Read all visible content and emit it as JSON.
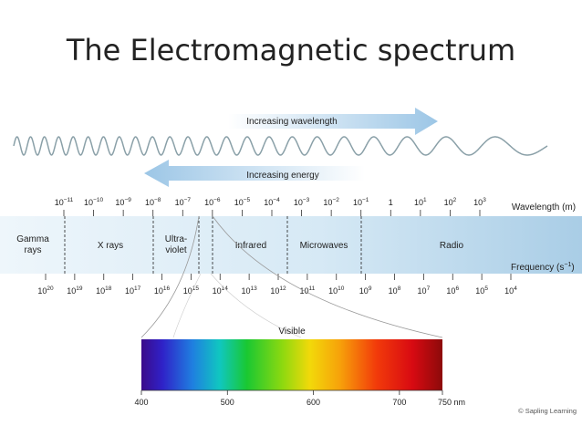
{
  "slide": {
    "title": "The Electromagnetic spectrum"
  },
  "arrows": {
    "wavelength": "Increasing wavelength",
    "energy": "Increasing energy"
  },
  "axis": {
    "wavelength_label": "Wavelength (m)",
    "frequency_label": "Frequency (s",
    "frequency_label_exp": "−1",
    "frequency_label_end": ")",
    "wavelength_ticks": [
      {
        "base": "10",
        "exp": "−11"
      },
      {
        "base": "10",
        "exp": "−10"
      },
      {
        "base": "10",
        "exp": "−9"
      },
      {
        "base": "10",
        "exp": "−8"
      },
      {
        "base": "10",
        "exp": "−7"
      },
      {
        "base": "10",
        "exp": "−6"
      },
      {
        "base": "10",
        "exp": "−5"
      },
      {
        "base": "10",
        "exp": "−4"
      },
      {
        "base": "10",
        "exp": "−3"
      },
      {
        "base": "10",
        "exp": "−2"
      },
      {
        "base": "10",
        "exp": "−1"
      },
      {
        "base": "1",
        "exp": ""
      },
      {
        "base": "10",
        "exp": "1"
      },
      {
        "base": "10",
        "exp": "2"
      },
      {
        "base": "10",
        "exp": "3"
      }
    ],
    "frequency_ticks": [
      {
        "base": "10",
        "exp": "20"
      },
      {
        "base": "10",
        "exp": "19"
      },
      {
        "base": "10",
        "exp": "18"
      },
      {
        "base": "10",
        "exp": "17"
      },
      {
        "base": "10",
        "exp": "16"
      },
      {
        "base": "10",
        "exp": "15"
      },
      {
        "base": "10",
        "exp": "14"
      },
      {
        "base": "10",
        "exp": "13"
      },
      {
        "base": "10",
        "exp": "12"
      },
      {
        "base": "10",
        "exp": "11"
      },
      {
        "base": "10",
        "exp": "10"
      },
      {
        "base": "10",
        "exp": "9"
      },
      {
        "base": "10",
        "exp": "8"
      },
      {
        "base": "10",
        "exp": "7"
      },
      {
        "base": "10",
        "exp": "6"
      },
      {
        "base": "10",
        "exp": "5"
      },
      {
        "base": "10",
        "exp": "4"
      }
    ]
  },
  "regions": [
    {
      "lines": [
        "Gamma",
        "rays"
      ]
    },
    {
      "lines": [
        "X rays"
      ]
    },
    {
      "lines": [
        "Ultra-",
        "violet"
      ]
    },
    {
      "lines": [
        "Infrared"
      ]
    },
    {
      "lines": [
        "Microwaves"
      ]
    },
    {
      "lines": [
        "Radio"
      ]
    }
  ],
  "visible": {
    "label": "Visible",
    "ticks": [
      "400",
      "500",
      "600",
      "700",
      "750 nm"
    ]
  },
  "credit": "© Sapling Learning",
  "colors": {
    "band_left": "#eef6fb",
    "band_right": "#a9cde6",
    "arrow": "#9cc6e6",
    "wave": "#8aa0a8"
  }
}
